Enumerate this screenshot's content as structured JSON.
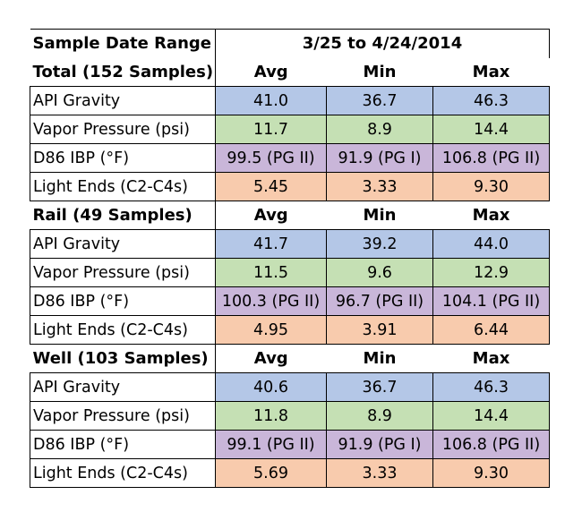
{
  "range_label": "Sample Date Range",
  "range_value": "3/25 to 4/24/2014",
  "col_headers": [
    "Avg",
    "Min",
    "Max"
  ],
  "sections": [
    {
      "title": "Total (152 Samples)",
      "rows": [
        {
          "label": "API Gravity",
          "avg": "41.0",
          "min": "36.7",
          "max": "46.3"
        },
        {
          "label": "Vapor Pressure (psi)",
          "avg": "11.7",
          "min": "8.9",
          "max": "14.4"
        },
        {
          "label": "D86 IBP (°F)",
          "avg": "99.5 (PG II)",
          "min": "91.9 (PG I)",
          "max": "106.8 (PG II)"
        },
        {
          "label": "Light Ends (C2-C4s)",
          "avg": "5.45",
          "min": "3.33",
          "max": "9.30"
        }
      ]
    },
    {
      "title": "Rail (49 Samples)",
      "rows": [
        {
          "label": "API Gravity",
          "avg": "41.7",
          "min": "39.2",
          "max": "44.0"
        },
        {
          "label": "Vapor Pressure (psi)",
          "avg": "11.5",
          "min": "9.6",
          "max": "12.9"
        },
        {
          "label": "D86 IBP (°F)",
          "avg": "100.3 (PG II)",
          "min": "96.7 (PG II)",
          "max": "104.1 (PG II)"
        },
        {
          "label": "Light Ends (C2-C4s)",
          "avg": "4.95",
          "min": "3.91",
          "max": "6.44"
        }
      ]
    },
    {
      "title": "Well (103 Samples)",
      "rows": [
        {
          "label": "API Gravity",
          "avg": "40.6",
          "min": "36.7",
          "max": "46.3"
        },
        {
          "label": "Vapor Pressure (psi)",
          "avg": "11.8",
          "min": "8.9",
          "max": "14.4"
        },
        {
          "label": "D86 IBP (°F)",
          "avg": "99.1 (PG II)",
          "min": "91.9 (PG I)",
          "max": "106.8 (PG II)"
        },
        {
          "label": "Light Ends (C2-C4s)",
          "avg": "5.69",
          "min": "3.33",
          "max": "9.30"
        }
      ]
    }
  ],
  "colors": {
    "api_gravity": "#b4c7e7",
    "vapor_pressure": "#c5e0b4",
    "d86_ibp": "#c9b6d9",
    "light_ends": "#f8cbad"
  }
}
